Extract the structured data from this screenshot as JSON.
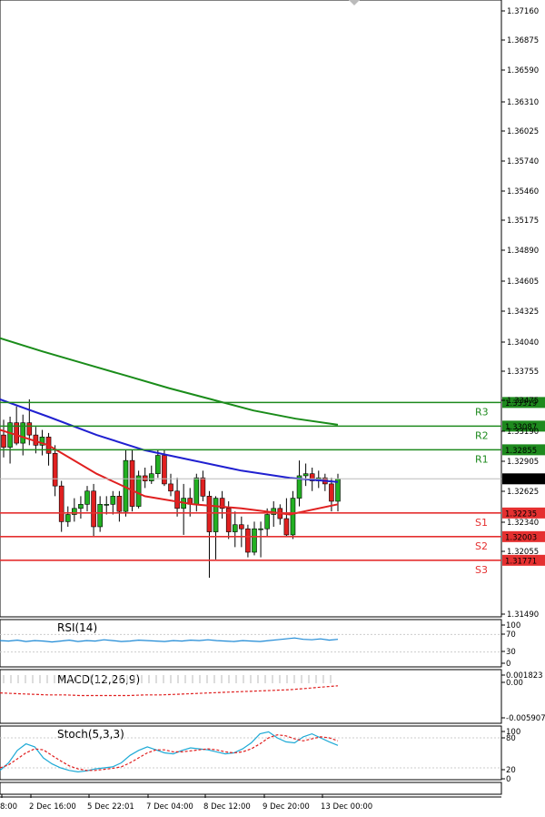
{
  "chart_data": {
    "type": "candlestick",
    "title": "",
    "price_axis": {
      "ylim": [
        1.3142,
        1.3735
      ],
      "ticks": [
        "1.37160",
        "1.36875",
        "1.36590",
        "1.36310",
        "1.36025",
        "1.35740",
        "1.35460",
        "1.35175",
        "1.34890",
        "1.34605",
        "1.34325",
        "1.34040",
        "1.33755",
        "1.33475",
        "1.33190",
        "1.32905",
        "1.32625",
        "1.32340",
        "1.32055",
        "1.31490"
      ]
    },
    "current_price": {
      "label": "1.32570",
      "value": 1.3257
    },
    "levels": [
      {
        "name": "R3",
        "label": "1.33319",
        "value": 1.33319,
        "color": "#1e8a1e"
      },
      {
        "name": "R2",
        "label": "1.33087",
        "value": 1.33087,
        "color": "#1e8a1e"
      },
      {
        "name": "R1",
        "label": "1.32855",
        "value": 1.32855,
        "color": "#1e8a1e"
      },
      {
        "name": "S1",
        "label": "1.32235",
        "value": 1.32235,
        "color": "#e53030"
      },
      {
        "name": "S2",
        "label": "1.32003",
        "value": 1.32003,
        "color": "#e53030"
      },
      {
        "name": "S3",
        "label": "1.31771",
        "value": 1.31771,
        "color": "#e53030"
      }
    ],
    "candles": [
      [
        1.33,
        1.3315,
        1.3278,
        1.3288
      ],
      [
        1.3288,
        1.3318,
        1.3272,
        1.3312
      ],
      [
        1.3312,
        1.3328,
        1.329,
        1.3292
      ],
      [
        1.3292,
        1.332,
        1.328,
        1.3312
      ],
      [
        1.3312,
        1.3335,
        1.329,
        1.33
      ],
      [
        1.33,
        1.3308,
        1.3282,
        1.329
      ],
      [
        1.329,
        1.3305,
        1.328,
        1.3298
      ],
      [
        1.3298,
        1.3302,
        1.327,
        1.3282
      ],
      [
        1.3282,
        1.329,
        1.324,
        1.325
      ],
      [
        1.325,
        1.3255,
        1.3205,
        1.3215
      ],
      [
        1.3215,
        1.323,
        1.321,
        1.3222
      ],
      [
        1.3222,
        1.3238,
        1.3215,
        1.3228
      ],
      [
        1.3228,
        1.324,
        1.3218,
        1.3232
      ],
      [
        1.3232,
        1.325,
        1.3225,
        1.3245
      ],
      [
        1.3245,
        1.3252,
        1.32,
        1.321
      ],
      [
        1.321,
        1.324,
        1.3205,
        1.3232
      ],
      [
        1.3232,
        1.324,
        1.3222,
        1.3232
      ],
      [
        1.3232,
        1.3245,
        1.3222,
        1.324
      ],
      [
        1.324,
        1.3245,
        1.3215,
        1.3225
      ],
      [
        1.3225,
        1.3285,
        1.322,
        1.3275
      ],
      [
        1.3275,
        1.3285,
        1.3225,
        1.323
      ],
      [
        1.323,
        1.3265,
        1.3228,
        1.326
      ],
      [
        1.326,
        1.3268,
        1.3248,
        1.3255
      ],
      [
        1.3255,
        1.327,
        1.3252,
        1.3262
      ],
      [
        1.3262,
        1.3285,
        1.3258,
        1.328
      ],
      [
        1.328,
        1.3285,
        1.325,
        1.3252
      ],
      [
        1.3252,
        1.3262,
        1.324,
        1.3245
      ],
      [
        1.3245,
        1.3258,
        1.322,
        1.3228
      ],
      [
        1.3228,
        1.3252,
        1.3202,
        1.3238
      ],
      [
        1.3238,
        1.3248,
        1.322,
        1.3232
      ],
      [
        1.3232,
        1.3262,
        1.3225,
        1.3258
      ],
      [
        1.3258,
        1.3265,
        1.3235,
        1.324
      ],
      [
        1.324,
        1.3245,
        1.316,
        1.3205
      ],
      [
        1.3205,
        1.324,
        1.3178,
        1.3238
      ],
      [
        1.3238,
        1.3245,
        1.3218,
        1.3228
      ],
      [
        1.3228,
        1.3235,
        1.3198,
        1.3205
      ],
      [
        1.3205,
        1.3225,
        1.319,
        1.3212
      ],
      [
        1.3212,
        1.322,
        1.319,
        1.3208
      ],
      [
        1.3208,
        1.3212,
        1.318,
        1.3185
      ],
      [
        1.3185,
        1.3215,
        1.3182,
        1.3208
      ],
      [
        1.3208,
        1.3215,
        1.318,
        1.3208
      ],
      [
        1.3208,
        1.3228,
        1.32,
        1.3222
      ],
      [
        1.3222,
        1.3235,
        1.321,
        1.3228
      ],
      [
        1.3228,
        1.3232,
        1.3212,
        1.3218
      ],
      [
        1.3218,
        1.3238,
        1.32,
        1.3202
      ],
      [
        1.3202,
        1.3245,
        1.3198,
        1.3238
      ],
      [
        1.3238,
        1.3275,
        1.323,
        1.326
      ],
      [
        1.326,
        1.3272,
        1.325,
        1.3262
      ],
      [
        1.3262,
        1.3268,
        1.3245,
        1.3255
      ],
      [
        1.3255,
        1.3265,
        1.3248,
        1.3258
      ],
      [
        1.3258,
        1.3262,
        1.3245,
        1.3252
      ],
      [
        1.3252,
        1.3258,
        1.3225,
        1.3235
      ],
      [
        1.3235,
        1.3262,
        1.3225,
        1.3257
      ]
    ],
    "moving_averages": [
      {
        "color": "#1a8c1a",
        "values": [
          1.3395,
          1.3382,
          1.337,
          1.3358,
          1.3346,
          1.3335,
          1.3324,
          1.3316,
          1.331
        ]
      },
      {
        "color": "#2020d0",
        "values": [
          1.3335,
          1.3318,
          1.33,
          1.3285,
          1.3275,
          1.3265,
          1.3258,
          1.3254
        ]
      },
      {
        "color": "#e02020",
        "values": [
          1.3305,
          1.329,
          1.3262,
          1.324,
          1.3232,
          1.3228,
          1.3222,
          1.3232
        ]
      }
    ],
    "x_tick_labels": [
      "8:00",
      "2 Dec 16:00",
      "5 Dec 22:01",
      "7 Dec 04:00",
      "8 Dec 12:00",
      "9 Dec 20:00",
      "13 Dec 00:00"
    ],
    "rsi": {
      "label": "RSI(14)",
      "ticks": [
        "100",
        "70",
        "30",
        "0"
      ],
      "ylim": [
        0,
        100
      ],
      "levels": [
        70,
        30
      ],
      "values": [
        56,
        55,
        57,
        54,
        56,
        55,
        53,
        55,
        57,
        54,
        56,
        55,
        58,
        56,
        54,
        55,
        57,
        56,
        55,
        54,
        56,
        55,
        57,
        56,
        58,
        56,
        55,
        54,
        56,
        55,
        54,
        56,
        58,
        60,
        62,
        59,
        58,
        60,
        57,
        59
      ]
    },
    "macd": {
      "label": "MACD(12,26,9)",
      "ticks": [
        "0.001823",
        "0.00",
        "-0.005907"
      ],
      "ylim": [
        -0.005907,
        0.001823
      ],
      "signal": [
        -0.0015,
        -0.0016,
        -0.0017,
        -0.0018,
        -0.0018,
        -0.0019,
        -0.0019,
        -0.0019,
        -0.0019,
        -0.0018,
        -0.0018,
        -0.0017,
        -0.0016,
        -0.0015,
        -0.0014,
        -0.0013,
        -0.0012,
        -0.0011,
        -0.001,
        -0.0008,
        -0.0006,
        -0.0004
      ]
    },
    "stoch": {
      "label": "Stoch(5,3,3)",
      "ticks": [
        "100",
        "80",
        "20",
        "0"
      ],
      "ylim": [
        0,
        100
      ],
      "k": [
        15,
        30,
        55,
        68,
        62,
        40,
        28,
        20,
        15,
        12,
        14,
        18,
        20,
        22,
        30,
        45,
        55,
        62,
        56,
        50,
        48,
        55,
        60,
        58,
        56,
        52,
        48,
        50,
        58,
        70,
        88,
        92,
        80,
        72,
        70,
        82,
        88,
        80,
        72,
        65
      ],
      "d": [
        20,
        26,
        38,
        50,
        58,
        56,
        45,
        34,
        24,
        18,
        15,
        15,
        17,
        19,
        22,
        30,
        40,
        50,
        56,
        56,
        52,
        52,
        54,
        56,
        58,
        56,
        52,
        50,
        52,
        58,
        68,
        80,
        86,
        84,
        78,
        74,
        78,
        82,
        80,
        74
      ]
    }
  }
}
